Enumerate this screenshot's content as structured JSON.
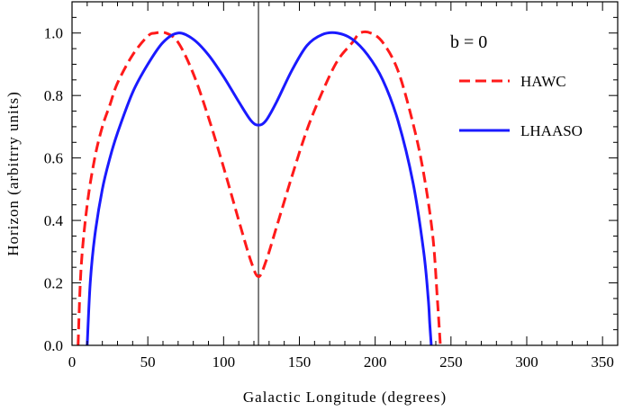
{
  "chart_data": {
    "type": "line",
    "xlabel": "Galactic Longitude (degrees)",
    "ylabel": "Horizon (arbitrry units)",
    "xlim": [
      0,
      360
    ],
    "ylim": [
      0,
      1.1
    ],
    "xticks": [
      "0",
      "50",
      "100",
      "150",
      "200",
      "250",
      "300",
      "350"
    ],
    "yticks": [
      "0.0",
      "0.2",
      "0.4",
      "0.6",
      "0.8",
      "1.0"
    ],
    "annotation": "b = 0",
    "vline_x": 123,
    "legend_position": "top-right",
    "grid": false,
    "series": [
      {
        "name": "HAWC",
        "color": "#ff1a1a",
        "style": "dashed",
        "x": [
          4,
          6,
          10,
          15,
          20,
          25,
          30,
          40,
          50,
          55,
          62,
          70,
          80,
          90,
          100,
          110,
          118,
          123,
          128,
          135,
          145,
          155,
          165,
          175,
          185,
          190,
          197,
          205,
          215,
          225,
          232,
          238,
          241,
          243
        ],
        "y": [
          0.0,
          0.25,
          0.45,
          0.6,
          0.7,
          0.77,
          0.84,
          0.93,
          0.99,
          1.0,
          1.0,
          0.97,
          0.87,
          0.73,
          0.57,
          0.4,
          0.27,
          0.22,
          0.27,
          0.38,
          0.54,
          0.69,
          0.81,
          0.91,
          0.97,
          1.0,
          1.0,
          0.97,
          0.88,
          0.71,
          0.55,
          0.35,
          0.15,
          0.0
        ]
      },
      {
        "name": "LHAASO",
        "color": "#1a1aff",
        "style": "solid",
        "x": [
          10,
          12,
          15,
          20,
          25,
          30,
          40,
          50,
          60,
          70,
          80,
          90,
          100,
          110,
          118,
          123,
          128,
          135,
          145,
          155,
          165,
          175,
          185,
          195,
          205,
          215,
          225,
          232,
          235,
          236,
          237
        ],
        "y": [
          0.0,
          0.2,
          0.35,
          0.5,
          0.6,
          0.68,
          0.81,
          0.9,
          0.97,
          1.0,
          0.98,
          0.93,
          0.86,
          0.78,
          0.72,
          0.705,
          0.72,
          0.78,
          0.88,
          0.96,
          0.995,
          1.0,
          0.98,
          0.93,
          0.85,
          0.72,
          0.52,
          0.3,
          0.15,
          0.07,
          0.0
        ]
      }
    ]
  }
}
